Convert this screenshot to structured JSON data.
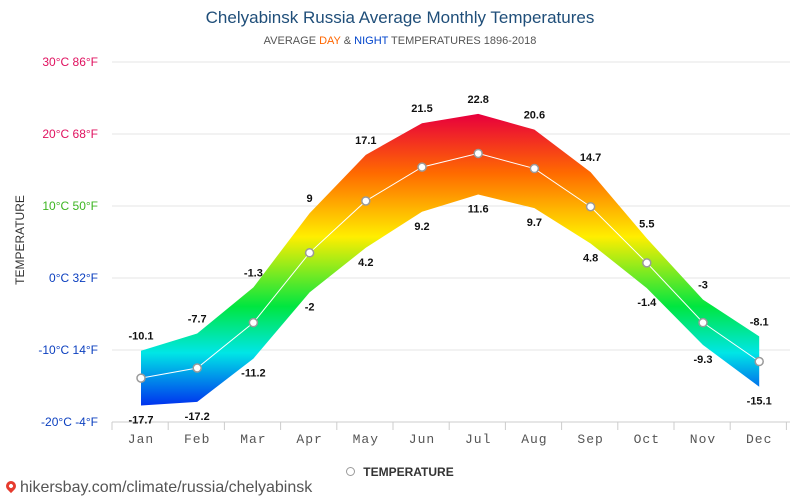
{
  "header": {
    "title": "Chelyabinsk Russia Average Monthly Temperatures",
    "subtitle_prefix": "AVERAGE ",
    "subtitle_day": "DAY",
    "subtitle_amp": " & ",
    "subtitle_night": "NIGHT",
    "subtitle_suffix": " TEMPERATURES 1896-2018"
  },
  "legend": {
    "label": "TEMPERATURE"
  },
  "footer": {
    "source": "hikersbay.com/climate/russia/chelyabinsk"
  },
  "colors": {
    "title": "#1f4e79",
    "day_accent": "#ff6600",
    "night_accent": "#0044cc",
    "legend_marker": "#9a9a9a"
  },
  "chart_data": {
    "type": "area",
    "title": "Chelyabinsk Russia Average Monthly Temperatures",
    "ylabel": "TEMPERATURE",
    "categories": [
      "Jan",
      "Feb",
      "Mar",
      "Apr",
      "May",
      "Jun",
      "Jul",
      "Aug",
      "Sep",
      "Oct",
      "Nov",
      "Dec"
    ],
    "ylim": [
      -20,
      30
    ],
    "yticks": [
      {
        "value": 30,
        "label": "30°C 86°F",
        "color": "#e0115f"
      },
      {
        "value": 20,
        "label": "20°C 68°F",
        "color": "#e0115f"
      },
      {
        "value": 10,
        "label": "10°C 50°F",
        "color": "#3cb521"
      },
      {
        "value": 0,
        "label": "0°C 32°F",
        "color": "#0b3fbf"
      },
      {
        "value": -10,
        "label": "-10°C 14°F",
        "color": "#0b3fbf"
      },
      {
        "value": -20,
        "label": "-20°C -4°F",
        "color": "#0b3fbf"
      }
    ],
    "series": [
      {
        "name": "DAY",
        "values": [
          -10.1,
          -7.7,
          -1.3,
          9,
          17.1,
          21.5,
          22.8,
          20.6,
          14.7,
          5.5,
          -3,
          -8.1
        ],
        "labels": [
          "-10.1",
          "-7.7",
          "-1.3",
          "9",
          "17.1",
          "21.5",
          "22.8",
          "20.6",
          "14.7",
          "5.5",
          "-3",
          "-8.1"
        ]
      },
      {
        "name": "NIGHT",
        "values": [
          -17.7,
          -17.2,
          -11.2,
          -2,
          4.2,
          9.2,
          11.6,
          9.7,
          4.8,
          -1.4,
          -9.3,
          -15.1
        ],
        "labels": [
          "-17.7",
          "-17.2",
          "-11.2",
          "-2",
          "4.2",
          "9.2",
          "11.6",
          "9.7",
          "4.8",
          "-1.4",
          "-9.3",
          "-15.1"
        ]
      },
      {
        "name": "TEMPERATURE",
        "values": [
          -13.9,
          -12.5,
          -6.2,
          3.5,
          10.7,
          15.4,
          17.3,
          15.2,
          9.9,
          2.1,
          -6.2,
          -11.6
        ]
      }
    ],
    "grid": true,
    "legend_position": "bottom"
  }
}
